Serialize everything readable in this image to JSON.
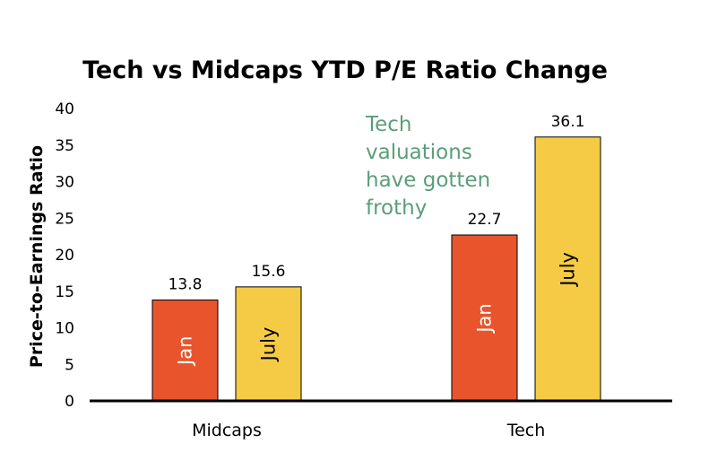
{
  "chart_data": {
    "type": "bar",
    "title": "Tech vs Midcaps YTD P/E Ratio Change",
    "xlabel": "",
    "ylabel": "Price-to-Earnings Ratio",
    "ylim": [
      0,
      40
    ],
    "yticks": [
      0,
      5,
      10,
      15,
      20,
      25,
      30,
      35,
      40
    ],
    "categories": [
      "Midcaps",
      "Tech"
    ],
    "series": [
      {
        "name": "Jan",
        "color": "#E8552D",
        "label_color": "#ffffff",
        "values": [
          13.8,
          22.7
        ]
      },
      {
        "name": "July",
        "color": "#F5CB45",
        "label_color": "#000000",
        "values": [
          15.6,
          36.1
        ]
      }
    ],
    "annotation": {
      "lines": [
        "Tech",
        "valuations",
        "have gotten",
        "frothy"
      ],
      "color": "#5A9E78"
    },
    "grid": false,
    "legend": "none"
  }
}
